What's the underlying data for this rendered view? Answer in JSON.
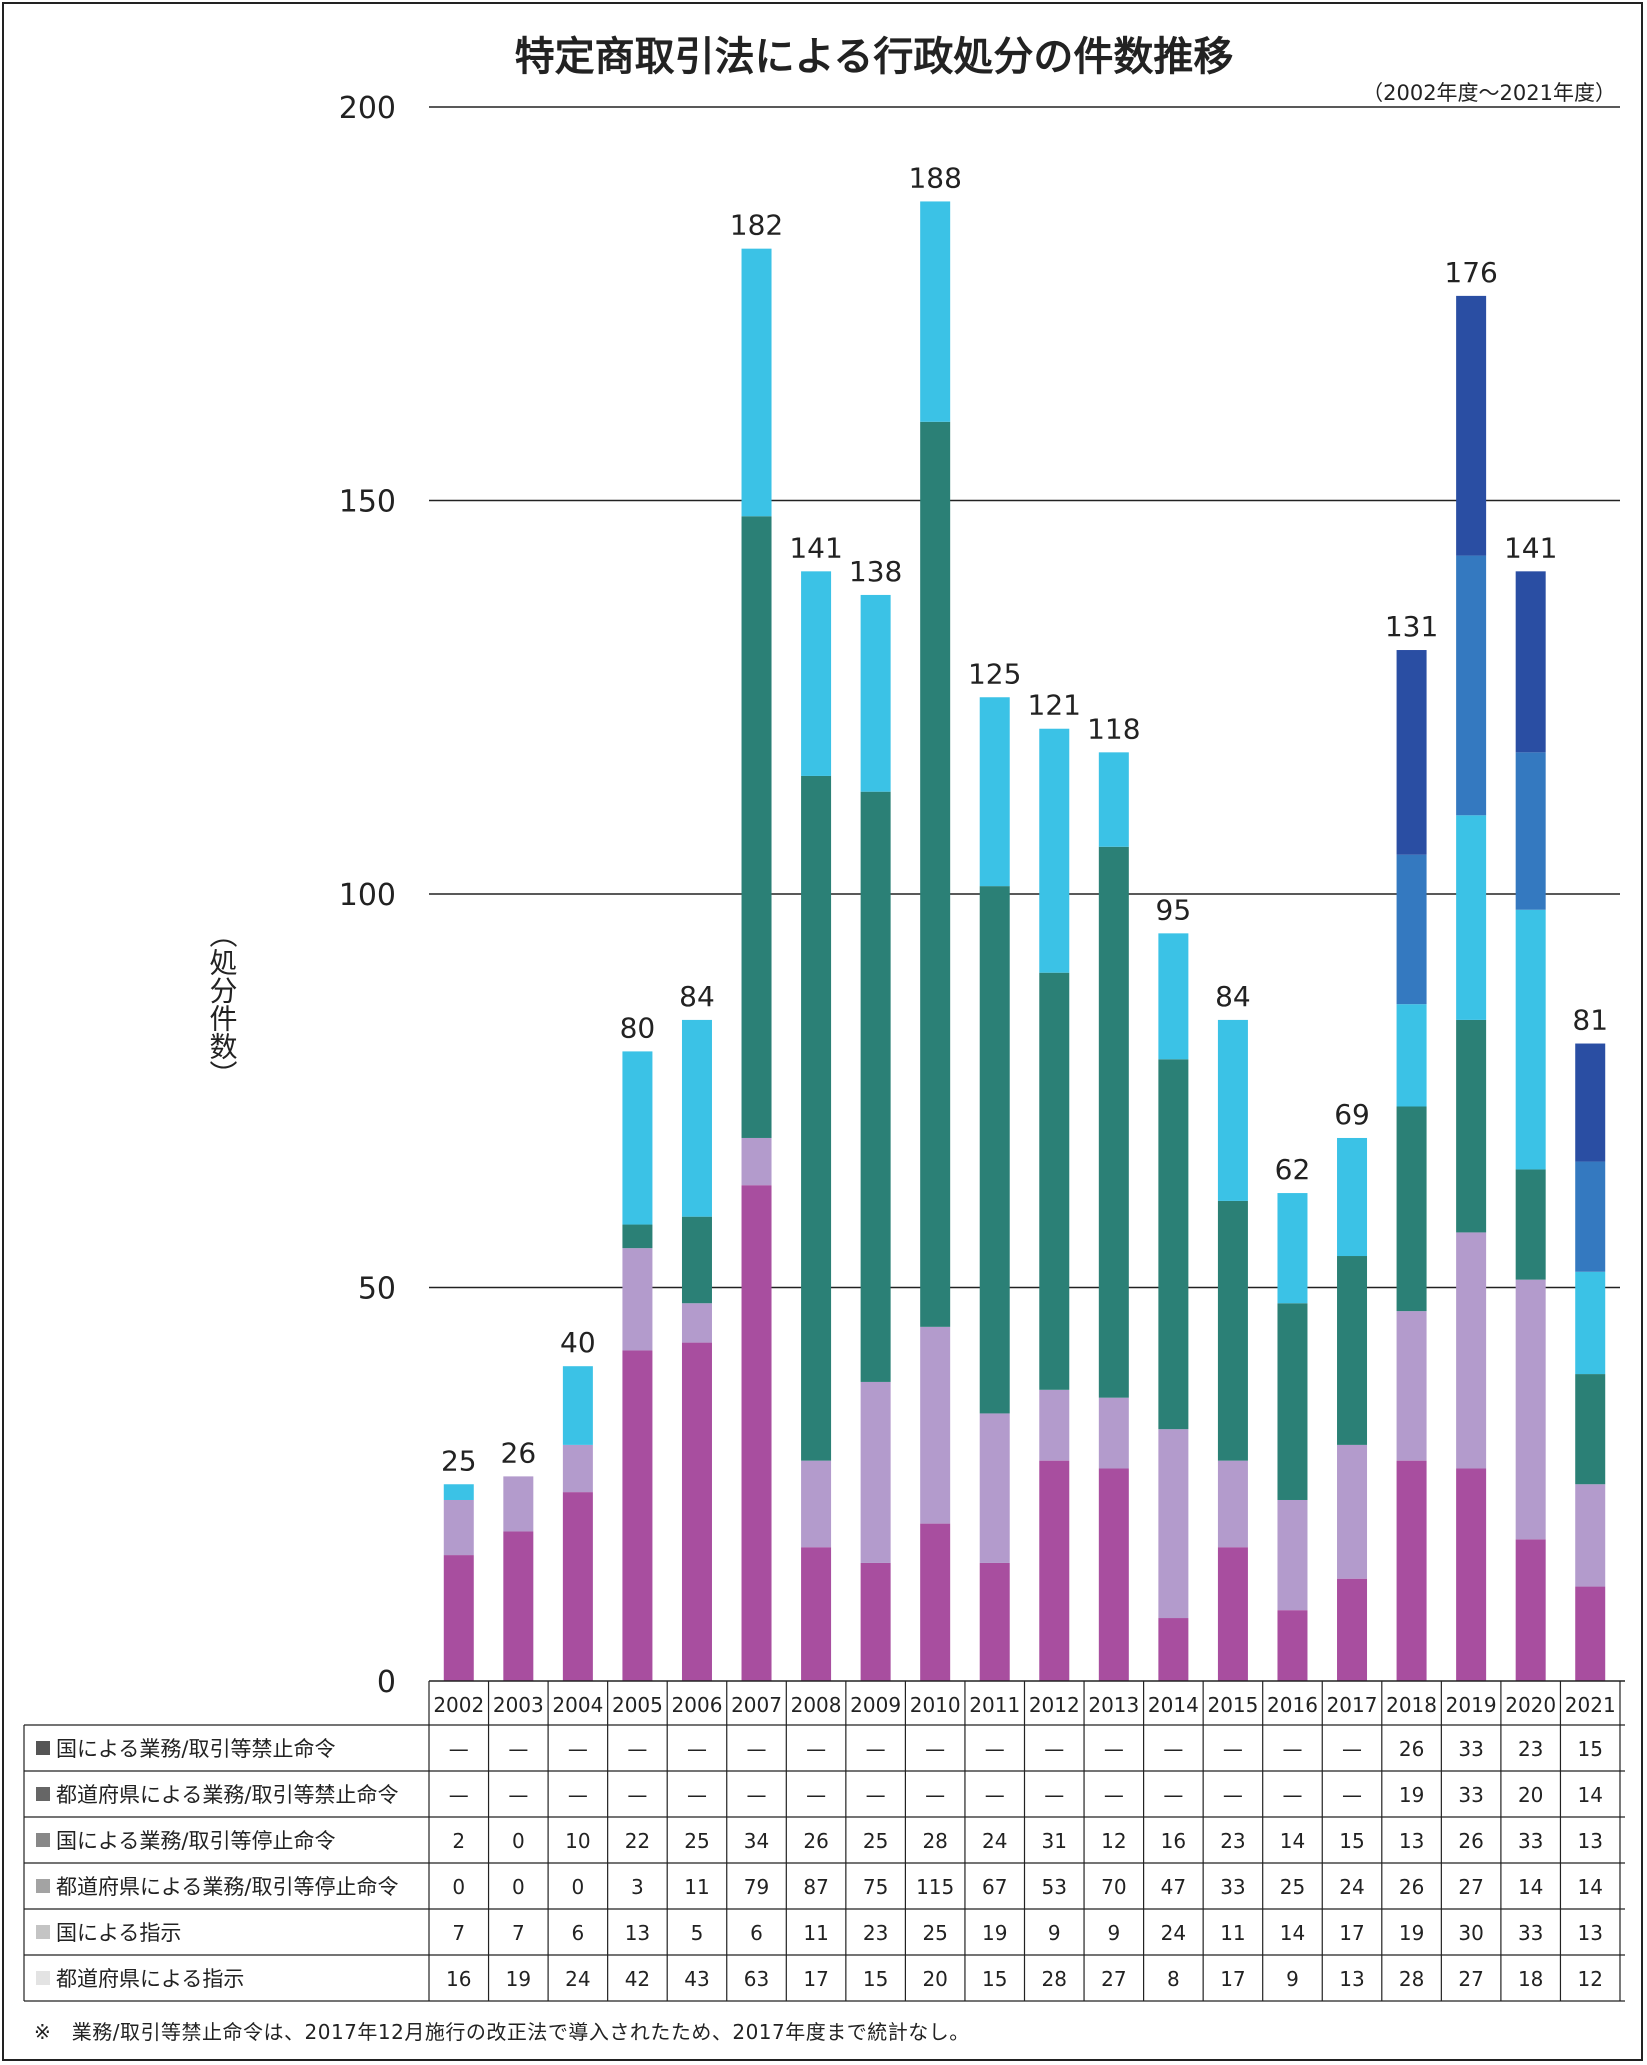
{
  "chart_data": {
    "type": "bar",
    "title": "特定商取引法による行政処分の件数推移",
    "subtitle": "（2002年度～2021年度）",
    "ylabel": "（処分件数）",
    "ylim": [
      0,
      200
    ],
    "yticks": [
      "0",
      "50",
      "100",
      "150",
      "200"
    ],
    "grid": true,
    "categories": [
      "2002",
      "2003",
      "2004",
      "2005",
      "2006",
      "2007",
      "2008",
      "2009",
      "2010",
      "2011",
      "2012",
      "2013",
      "2014",
      "2015",
      "2016",
      "2017",
      "2018",
      "2019",
      "2020",
      "2021"
    ],
    "totals": [
      "25",
      "26",
      "40",
      "80",
      "84",
      "182",
      "141",
      "138",
      "188",
      "125",
      "121",
      "118",
      "95",
      "84",
      "62",
      "69",
      "131",
      "176",
      "141",
      "81"
    ],
    "series": [
      {
        "name": "国による業務/取引等禁止命令",
        "color": "#2a4ea3",
        "marker": "#555555",
        "values": [
          null,
          null,
          null,
          null,
          null,
          null,
          null,
          null,
          null,
          null,
          null,
          null,
          null,
          null,
          null,
          null,
          26,
          33,
          23,
          15
        ],
        "labels": [
          "—",
          "—",
          "—",
          "—",
          "—",
          "—",
          "—",
          "—",
          "—",
          "—",
          "—",
          "—",
          "—",
          "—",
          "—",
          "—",
          "26",
          "33",
          "23",
          "15"
        ]
      },
      {
        "name": "都道府県による業務/取引等禁止命令",
        "color": "#3479c0",
        "marker": "#666666",
        "values": [
          null,
          null,
          null,
          null,
          null,
          null,
          null,
          null,
          null,
          null,
          null,
          null,
          null,
          null,
          null,
          null,
          19,
          33,
          20,
          14
        ],
        "labels": [
          "—",
          "—",
          "—",
          "—",
          "—",
          "—",
          "—",
          "—",
          "—",
          "—",
          "—",
          "—",
          "—",
          "—",
          "—",
          "—",
          "19",
          "33",
          "20",
          "14"
        ]
      },
      {
        "name": "国による業務/取引等停止命令",
        "color": "#3bc2e6",
        "marker": "#888888",
        "values": [
          2,
          0,
          10,
          22,
          25,
          34,
          26,
          25,
          28,
          24,
          31,
          12,
          16,
          23,
          14,
          15,
          13,
          26,
          33,
          13
        ],
        "labels": [
          "2",
          "0",
          "10",
          "22",
          "25",
          "34",
          "26",
          "25",
          "28",
          "24",
          "31",
          "12",
          "16",
          "23",
          "14",
          "15",
          "13",
          "26",
          "33",
          "13"
        ]
      },
      {
        "name": "都道府県による業務/取引等停止命令",
        "color": "#2b8076",
        "marker": "#a3a3a3",
        "values": [
          0,
          0,
          0,
          3,
          11,
          79,
          87,
          75,
          115,
          67,
          53,
          70,
          47,
          33,
          25,
          24,
          26,
          27,
          14,
          14
        ],
        "labels": [
          "0",
          "0",
          "0",
          "3",
          "11",
          "79",
          "87",
          "75",
          "115",
          "67",
          "53",
          "70",
          "47",
          "33",
          "25",
          "24",
          "26",
          "27",
          "14",
          "14"
        ]
      },
      {
        "name": "国による指示",
        "color": "#b39bcc",
        "marker": "#c4c4c4",
        "values": [
          7,
          7,
          6,
          13,
          5,
          6,
          11,
          23,
          25,
          19,
          9,
          9,
          24,
          11,
          14,
          17,
          19,
          30,
          33,
          13
        ],
        "labels": [
          "7",
          "7",
          "6",
          "13",
          "5",
          "6",
          "11",
          "23",
          "25",
          "19",
          "9",
          "9",
          "24",
          "11",
          "14",
          "17",
          "19",
          "30",
          "33",
          "13"
        ]
      },
      {
        "name": "都道府県による指示",
        "color": "#a84e9f",
        "marker": "#e3e3e3",
        "values": [
          16,
          19,
          24,
          42,
          43,
          63,
          17,
          15,
          20,
          15,
          28,
          27,
          8,
          17,
          9,
          13,
          28,
          27,
          18,
          12
        ],
        "labels": [
          "16",
          "19",
          "24",
          "42",
          "43",
          "63",
          "17",
          "15",
          "20",
          "15",
          "28",
          "27",
          "8",
          "17",
          "9",
          "13",
          "28",
          "27",
          "18",
          "12"
        ]
      }
    ]
  },
  "footnote": "※　業務/取引等禁止命令は、2017年12月施行の改正法で導入されたため、2017年度まで統計なし。"
}
